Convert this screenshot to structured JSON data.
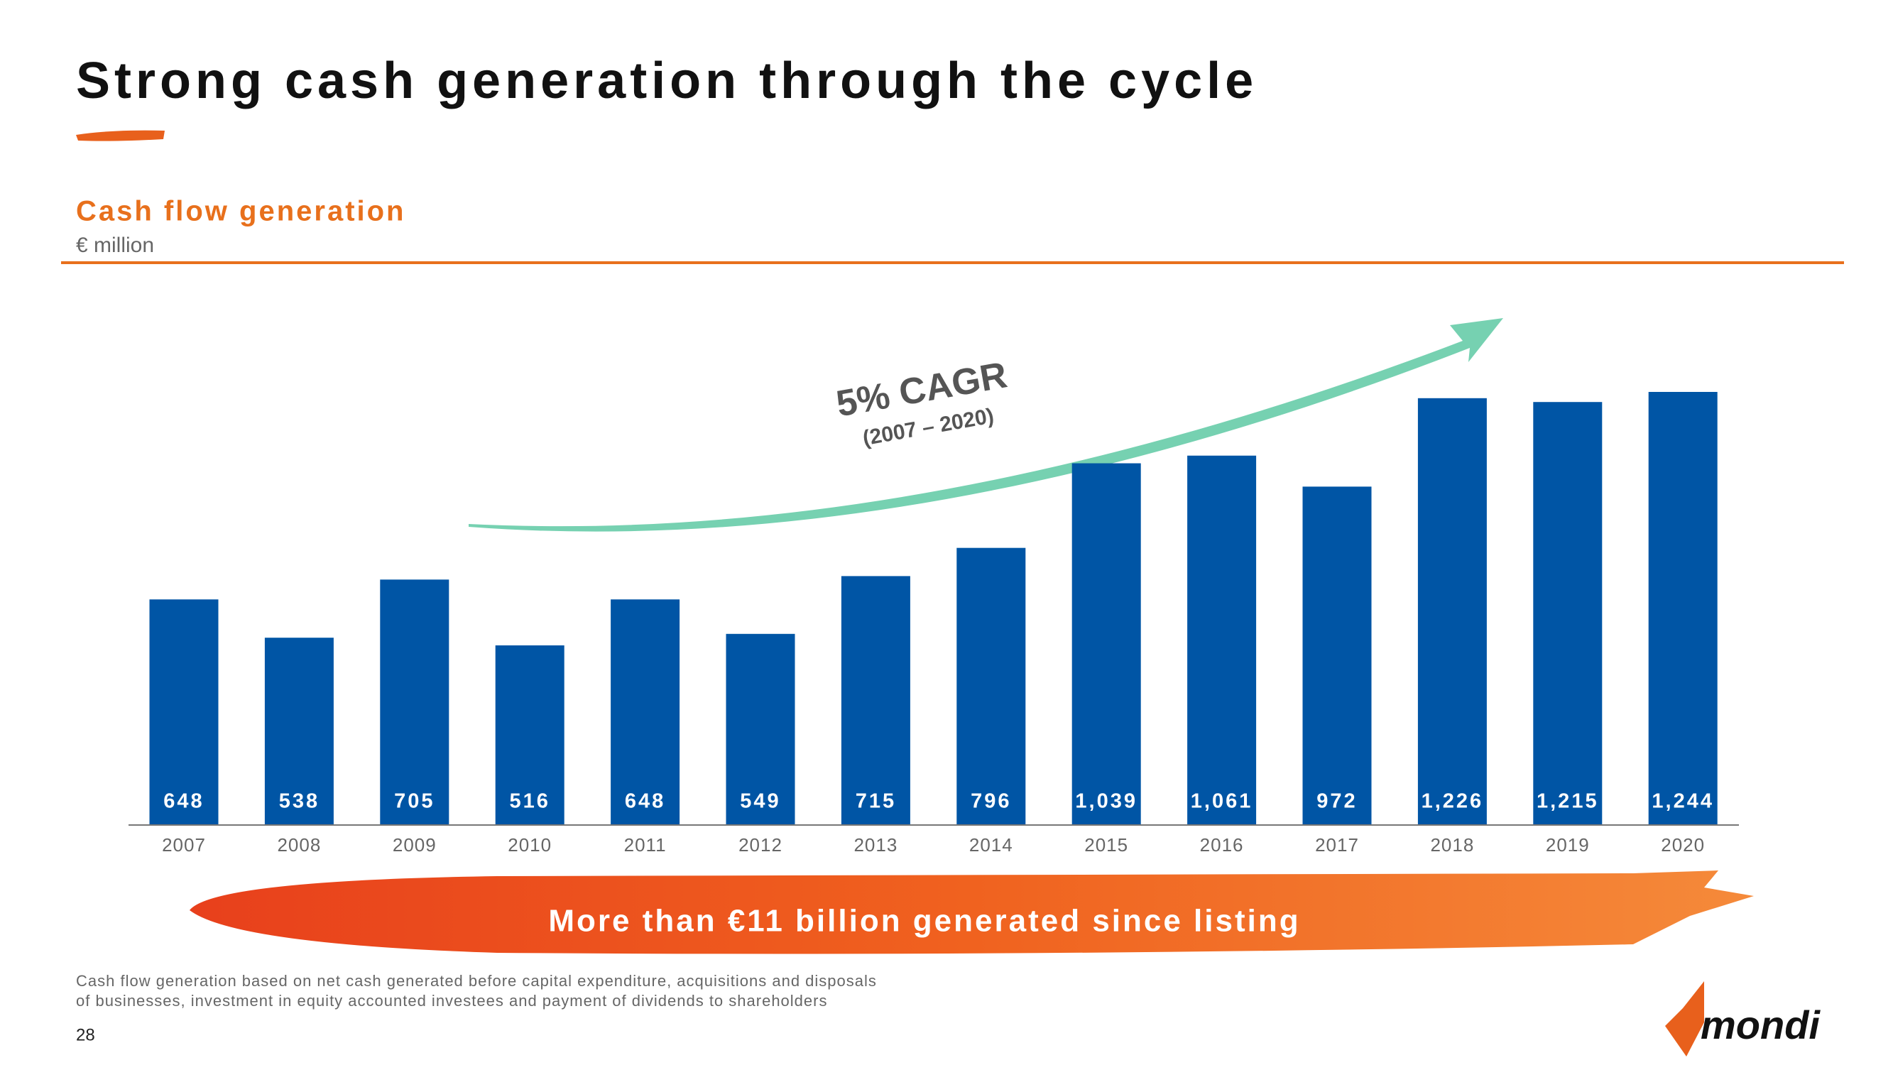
{
  "page": {
    "title": "Strong cash generation through the cycle",
    "footnote": [
      "Cash flow generation based on net cash generated before capital expenditure, acquisitions and disposals",
      "of businesses, investment in equity accounted investees and payment of dividends to shareholders"
    ],
    "page_number": "28",
    "logo": "mondi"
  },
  "chart_data": {
    "type": "bar",
    "title": "Cash flow generation",
    "subtitle": "€ million",
    "categories": [
      "2007",
      "2008",
      "2009",
      "2010",
      "2011",
      "2012",
      "2013",
      "2014",
      "2015",
      "2016",
      "2017",
      "2018",
      "2019",
      "2020"
    ],
    "values": [
      648,
      538,
      705,
      516,
      648,
      549,
      715,
      796,
      1039,
      1061,
      972,
      1226,
      1215,
      1244
    ],
    "value_labels": [
      "648",
      "538",
      "705",
      "516",
      "648",
      "549",
      "715",
      "796",
      "1,039",
      "1,061",
      "972",
      "1,226",
      "1,215",
      "1,244"
    ],
    "color": "#0055a5",
    "annotations": {
      "cagr": "5% CAGR",
      "cagr_period": "(2007 – 2020)",
      "banner": "More than €11 billion generated since listing"
    }
  }
}
